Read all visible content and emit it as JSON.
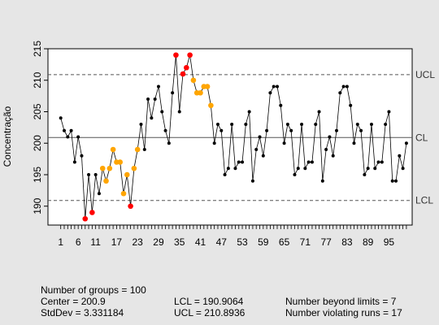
{
  "chart_data": {
    "type": "scatter",
    "ylabel": "Concentração",
    "ylim": [
      187,
      215
    ],
    "y_ticks": [
      190,
      195,
      200,
      205,
      210,
      215
    ],
    "x_range": [
      1,
      100
    ],
    "x_tick_labels": [
      "1",
      "6",
      "11",
      "17",
      "23",
      "29",
      "35",
      "41",
      "47",
      "53",
      "59",
      "65",
      "71",
      "77",
      "83",
      "89",
      "95"
    ],
    "grid": false,
    "center_line": 200.9,
    "ucl": 210.8936,
    "lcl": 190.9064,
    "line_labels": {
      "ucl": "UCL",
      "cl": "CL",
      "lcl": "LCL"
    },
    "colors": {
      "normal": "#000000",
      "run_violation": "#ffa500",
      "beyond_limits": "#ff0000",
      "panel": "#ffffff",
      "background": "#e6e6e6"
    },
    "values": [
      204,
      202,
      201,
      202,
      197,
      201,
      198,
      188,
      195,
      189,
      195,
      192,
      196,
      194,
      196,
      199,
      197,
      197,
      192,
      195,
      190,
      196,
      199,
      203,
      199,
      207,
      204,
      207,
      209,
      205,
      202,
      200,
      208,
      214,
      205,
      211,
      212,
      214,
      210,
      208,
      208,
      209,
      209,
      206,
      200,
      203,
      202,
      195,
      196,
      203,
      196,
      197,
      197,
      203,
      205,
      194,
      199,
      201,
      198,
      202,
      208,
      209,
      209,
      206,
      200,
      203,
      202,
      195,
      196,
      203,
      196,
      197,
      197,
      203,
      205,
      194,
      199,
      201,
      198,
      202,
      208,
      209,
      209,
      206,
      200,
      203,
      202,
      195,
      196,
      203,
      196,
      197,
      197,
      203,
      205,
      194,
      194,
      198,
      196,
      200
    ],
    "status": [
      "n",
      "n",
      "n",
      "n",
      "n",
      "n",
      "n",
      "r",
      "n",
      "r",
      "n",
      "n",
      "o",
      "o",
      "o",
      "o",
      "o",
      "o",
      "o",
      "o",
      "r",
      "o",
      "o",
      "n",
      "n",
      "n",
      "n",
      "n",
      "n",
      "n",
      "n",
      "n",
      "n",
      "r",
      "n",
      "r",
      "r",
      "r",
      "o",
      "o",
      "o",
      "o",
      "o",
      "o",
      "n",
      "n",
      "n",
      "n",
      "n",
      "n",
      "n",
      "n",
      "n",
      "n",
      "n",
      "n",
      "n",
      "n",
      "n",
      "n",
      "n",
      "n",
      "n",
      "n",
      "n",
      "n",
      "n",
      "n",
      "n",
      "n",
      "n",
      "n",
      "n",
      "n",
      "n",
      "n",
      "n",
      "n",
      "n",
      "n",
      "n",
      "n",
      "n",
      "n",
      "n",
      "n",
      "n",
      "n",
      "n",
      "n",
      "n",
      "n",
      "n",
      "n",
      "n",
      "n",
      "n",
      "n",
      "n",
      "n"
    ]
  },
  "stats": {
    "groups": "Number of groups = 100",
    "center": "Center = 200.9",
    "stddev": "StdDev = 3.331184",
    "lcl": "LCL = 190.9064",
    "ucl": "UCL = 210.8936",
    "beyond": "Number beyond limits = 7",
    "runs": "Number violating runs = 17"
  }
}
